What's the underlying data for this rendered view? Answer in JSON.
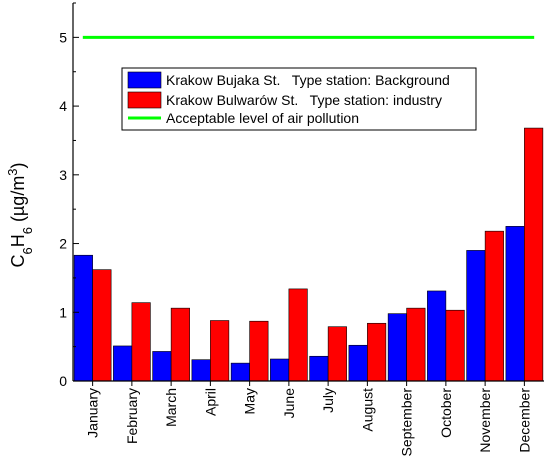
{
  "chart_data": {
    "type": "bar",
    "categories": [
      "January",
      "February",
      "March",
      "April",
      "May",
      "June",
      "July",
      "August",
      "September",
      "October",
      "November",
      "December"
    ],
    "series": [
      {
        "name": "Krakow Bujaka St.   Type station: Background",
        "color": "#0000ff",
        "values": [
          1.83,
          0.51,
          0.43,
          0.31,
          0.26,
          0.32,
          0.36,
          0.52,
          0.98,
          1.31,
          1.9,
          2.25
        ]
      },
      {
        "name": "Krakow Bulwarów St.   Type station: industry",
        "color": "#ff0000",
        "values": [
          1.62,
          1.14,
          1.06,
          0.88,
          0.87,
          1.34,
          0.79,
          0.84,
          1.06,
          1.03,
          2.18,
          3.68
        ]
      }
    ],
    "reference_line": {
      "name": "Acceptable level of air pollution",
      "value": 5,
      "color": "#00ff00"
    },
    "ylabel": {
      "base": "C",
      "sub1": "6",
      "mid": "H",
      "sub2": "6",
      "unit_open": " (µg/m",
      "sup": "3",
      "unit_close": ")"
    },
    "ylim": [
      0,
      5.5
    ],
    "yticks": [
      "0",
      "1",
      "2",
      "3",
      "4",
      "5"
    ],
    "legend_position": "top-center",
    "grid": false
  }
}
